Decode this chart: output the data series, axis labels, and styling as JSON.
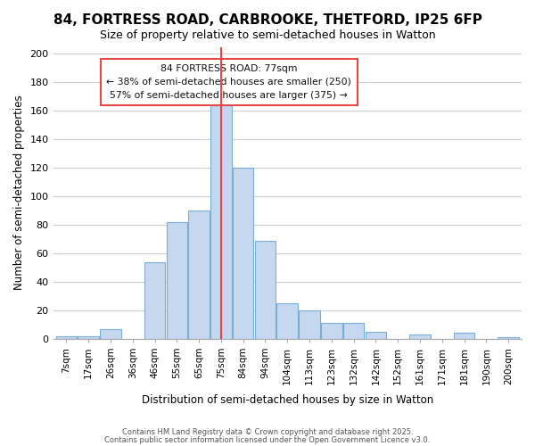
{
  "title": "84, FORTRESS ROAD, CARBROOKE, THETFORD, IP25 6FP",
  "subtitle": "Size of property relative to semi-detached houses in Watton",
  "xlabel": "Distribution of semi-detached houses by size in Watton",
  "ylabel": "Number of semi-detached properties",
  "categories": [
    "7sqm",
    "17sqm",
    "26sqm",
    "36sqm",
    "46sqm",
    "55sqm",
    "65sqm",
    "75sqm",
    "84sqm",
    "94sqm",
    "104sqm",
    "113sqm",
    "123sqm",
    "132sqm",
    "142sqm",
    "152sqm",
    "161sqm",
    "171sqm",
    "181sqm",
    "190sqm",
    "200sqm"
  ],
  "bar_values": [
    2,
    2,
    7,
    0,
    54,
    82,
    90,
    164,
    120,
    69,
    25,
    20,
    11,
    11,
    5,
    0,
    3,
    0,
    4,
    0,
    1
  ],
  "bar_color": "#c5d8f0",
  "bar_edge_color": "#7aadd4",
  "highlight_bar_index": 7,
  "vline_color": "#e8474a",
  "annotation_title": "84 FORTRESS ROAD: 77sqm",
  "annotation_line1": "← 38% of semi-detached houses are smaller (250)",
  "annotation_line2": "57% of semi-detached houses are larger (375) →",
  "annotation_box_color": "#ffffff",
  "annotation_box_edge_color": "#e8474a",
  "ylim": [
    0,
    205
  ],
  "yticks": [
    0,
    20,
    40,
    60,
    80,
    100,
    120,
    140,
    160,
    180,
    200
  ],
  "footer1": "Contains HM Land Registry data © Crown copyright and database right 2025.",
  "footer2": "Contains public sector information licensed under the Open Government Licence v3.0.",
  "background_color": "#ffffff",
  "grid_color": "#d0d0d0"
}
